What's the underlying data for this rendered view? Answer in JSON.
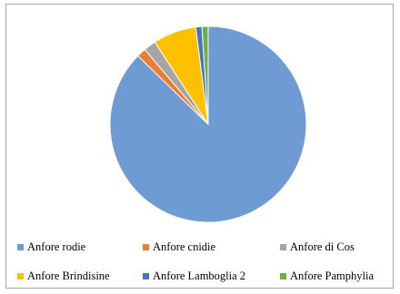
{
  "chart_data": {
    "type": "pie",
    "title": "",
    "legend_position": "bottom",
    "slices": [
      {
        "label": "Anfore rodie",
        "value": 86.0,
        "color": "#6f9bd3"
      },
      {
        "label": "Anfore cnidie",
        "value": 1.5,
        "color": "#ec7d31"
      },
      {
        "label": "Anfore di Cos",
        "value": 2.0,
        "color": "#a5a5a5"
      },
      {
        "label": "Anfore Brindisine",
        "value": 7.0,
        "color": "#ffc000"
      },
      {
        "label": "Anfore Lamboglia 2",
        "value": 1.0,
        "color": "#4472c4"
      },
      {
        "label": "Anfore Pamphylia",
        "value": 1.0,
        "color": "#70ad47"
      }
    ]
  }
}
